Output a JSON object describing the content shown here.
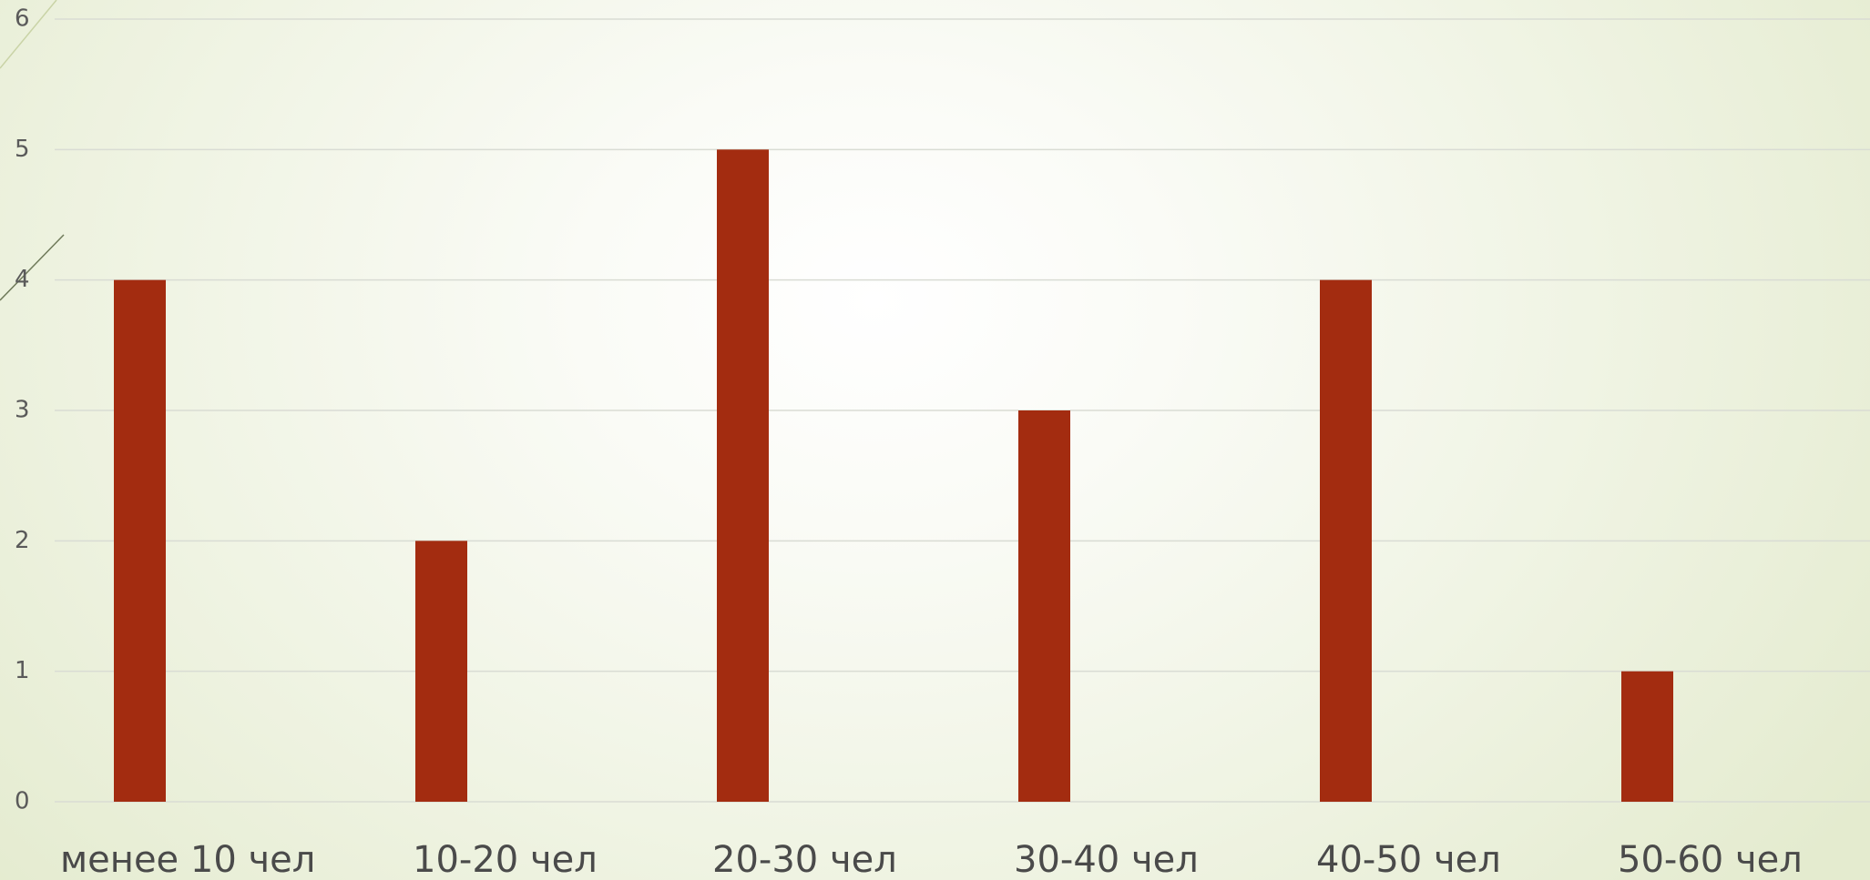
{
  "chart_data": {
    "type": "bar",
    "categories": [
      "менее 10 чел",
      "10-20 чел",
      "20-30 чел",
      "30-40 чел",
      "40-50 чел",
      "50-60 чел"
    ],
    "values": [
      4,
      2,
      5,
      3,
      4,
      1
    ],
    "yticks": [
      "0",
      "1",
      "2",
      "3",
      "4",
      "5",
      "6"
    ],
    "ylim": [
      0,
      6
    ],
    "grid": true,
    "legend": "none",
    "colors": {
      "bar": "#a32c10",
      "grid": "#d9dcd4",
      "tick_text": "#5a5a5a"
    }
  }
}
